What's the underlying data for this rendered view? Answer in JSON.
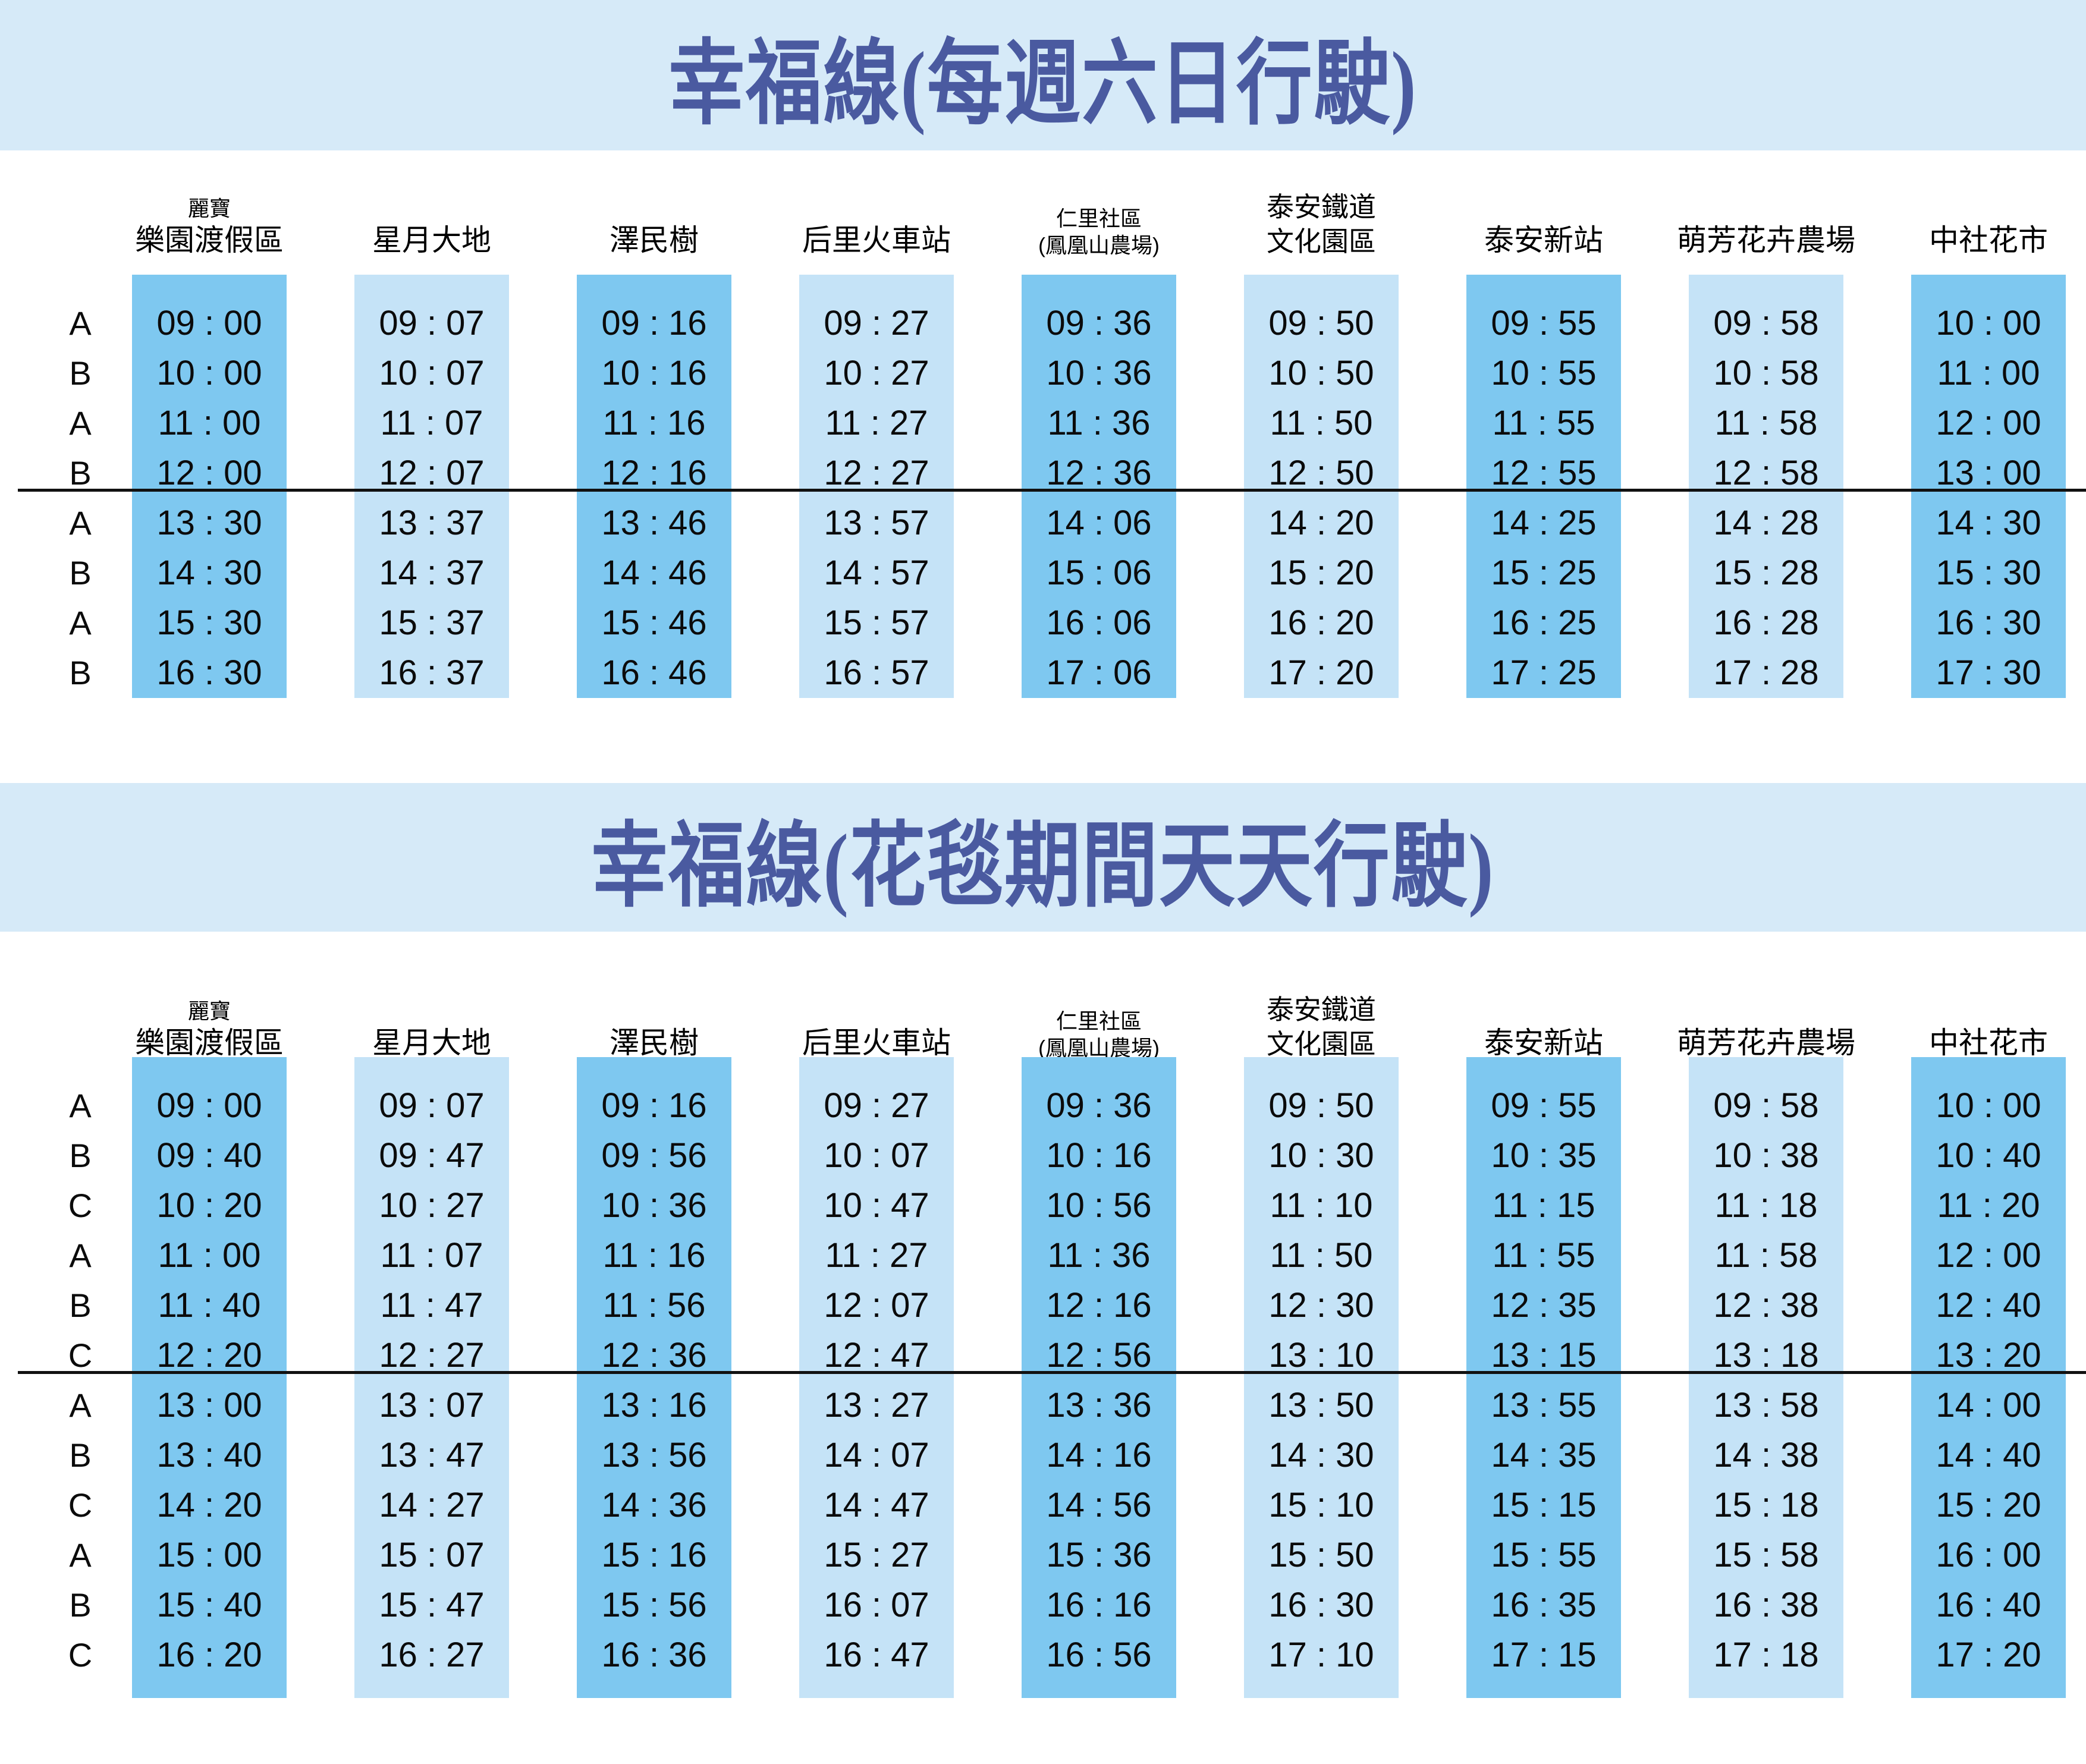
{
  "colors": {
    "band_background": "#d6eaf8",
    "title_text": "#4a5aa0",
    "column_dark": "#7ec8f0",
    "column_light": "#c5e3f7",
    "time_text": "#0b0b0b",
    "divider": "#111111"
  },
  "stations": [
    {
      "line1": "麗寶",
      "line2": "樂園渡假區",
      "style1": "small",
      "style2": "big",
      "shade": "dark"
    },
    {
      "line1": "",
      "line2": "星月大地",
      "style1": "small",
      "style2": "big",
      "shade": "light"
    },
    {
      "line1": "",
      "line2": "澤民樹",
      "style1": "small",
      "style2": "big",
      "shade": "dark"
    },
    {
      "line1": "",
      "line2": "后里火車站",
      "style1": "small",
      "style2": "big",
      "shade": "light"
    },
    {
      "line1": "仁里社區",
      "line2": "(鳳凰山農場)",
      "style1": "small",
      "style2": "small",
      "shade": "dark"
    },
    {
      "line1": "泰安鐵道",
      "line2": "文化園區",
      "style1": "med",
      "style2": "med",
      "shade": "light"
    },
    {
      "line1": "",
      "line2": "泰安新站",
      "style1": "small",
      "style2": "big",
      "shade": "dark"
    },
    {
      "line1": "",
      "line2": "萌芳花卉農場",
      "style1": "small",
      "style2": "big",
      "shade": "light"
    },
    {
      "line1": "",
      "line2": "中社花市",
      "style1": "small",
      "style2": "big",
      "shade": "dark"
    }
  ],
  "tables": [
    {
      "title": "幸福線(每週六日行駛)",
      "divider_after_row": 4,
      "rows": [
        {
          "letter": "A",
          "times": [
            "09 : 00",
            "09 : 07",
            "09 : 16",
            "09 : 27",
            "09 : 36",
            "09 : 50",
            "09 : 55",
            "09 : 58",
            "10 : 00"
          ]
        },
        {
          "letter": "B",
          "times": [
            "10 : 00",
            "10 : 07",
            "10 : 16",
            "10 : 27",
            "10 : 36",
            "10 : 50",
            "10 : 55",
            "10 : 58",
            "11 : 00"
          ]
        },
        {
          "letter": "A",
          "times": [
            "11 : 00",
            "11 : 07",
            "11 : 16",
            "11 : 27",
            "11 : 36",
            "11 : 50",
            "11 : 55",
            "11 : 58",
            "12 : 00"
          ]
        },
        {
          "letter": "B",
          "times": [
            "12 : 00",
            "12 : 07",
            "12 : 16",
            "12 : 27",
            "12 : 36",
            "12 : 50",
            "12 : 55",
            "12 : 58",
            "13 : 00"
          ]
        },
        {
          "letter": "A",
          "times": [
            "13 : 30",
            "13 : 37",
            "13 : 46",
            "13 : 57",
            "14 : 06",
            "14 : 20",
            "14 : 25",
            "14 : 28",
            "14 : 30"
          ]
        },
        {
          "letter": "B",
          "times": [
            "14 : 30",
            "14 : 37",
            "14 : 46",
            "14 : 57",
            "15 : 06",
            "15 : 20",
            "15 : 25",
            "15 : 28",
            "15 : 30"
          ]
        },
        {
          "letter": "A",
          "times": [
            "15 : 30",
            "15 : 37",
            "15 : 46",
            "15 : 57",
            "16 : 06",
            "16 : 20",
            "16 : 25",
            "16 : 28",
            "16 : 30"
          ]
        },
        {
          "letter": "B",
          "times": [
            "16 : 30",
            "16 : 37",
            "16 : 46",
            "16 : 57",
            "17 : 06",
            "17 : 20",
            "17 : 25",
            "17 : 28",
            "17 : 30"
          ]
        }
      ]
    },
    {
      "title": "幸福線(花毯期間天天行駛)",
      "divider_after_row": 6,
      "rows": [
        {
          "letter": "A",
          "times": [
            "09 : 00",
            "09 : 07",
            "09 : 16",
            "09 : 27",
            "09 : 36",
            "09 : 50",
            "09 : 55",
            "09 : 58",
            "10 : 00"
          ]
        },
        {
          "letter": "B",
          "times": [
            "09 : 40",
            "09 : 47",
            "09 : 56",
            "10 : 07",
            "10 : 16",
            "10 : 30",
            "10 : 35",
            "10 : 38",
            "10 : 40"
          ]
        },
        {
          "letter": "C",
          "times": [
            "10 : 20",
            "10 : 27",
            "10 : 36",
            "10 : 47",
            "10 : 56",
            "11 : 10",
            "11 : 15",
            "11 : 18",
            "11 : 20"
          ]
        },
        {
          "letter": "A",
          "times": [
            "11 : 00",
            "11 : 07",
            "11 : 16",
            "11 : 27",
            "11 : 36",
            "11 : 50",
            "11 : 55",
            "11 : 58",
            "12 : 00"
          ]
        },
        {
          "letter": "B",
          "times": [
            "11 : 40",
            "11 : 47",
            "11 : 56",
            "12 : 07",
            "12 : 16",
            "12 : 30",
            "12 : 35",
            "12 : 38",
            "12 : 40"
          ]
        },
        {
          "letter": "C",
          "times": [
            "12 : 20",
            "12 : 27",
            "12 : 36",
            "12 : 47",
            "12 : 56",
            "13 : 10",
            "13 : 15",
            "13 : 18",
            "13 : 20"
          ]
        },
        {
          "letter": "A",
          "times": [
            "13 : 00",
            "13 : 07",
            "13 : 16",
            "13 : 27",
            "13 : 36",
            "13 : 50",
            "13 : 55",
            "13 : 58",
            "14 : 00"
          ]
        },
        {
          "letter": "B",
          "times": [
            "13 : 40",
            "13 : 47",
            "13 : 56",
            "14 : 07",
            "14 : 16",
            "14 : 30",
            "14 : 35",
            "14 : 38",
            "14 : 40"
          ]
        },
        {
          "letter": "C",
          "times": [
            "14 : 20",
            "14 : 27",
            "14 : 36",
            "14 : 47",
            "14 : 56",
            "15 : 10",
            "15 : 15",
            "15 : 18",
            "15 : 20"
          ]
        },
        {
          "letter": "A",
          "times": [
            "15 : 00",
            "15 : 07",
            "15 : 16",
            "15 : 27",
            "15 : 36",
            "15 : 50",
            "15 : 55",
            "15 : 58",
            "16 : 00"
          ]
        },
        {
          "letter": "B",
          "times": [
            "15 : 40",
            "15 : 47",
            "15 : 56",
            "16 : 07",
            "16 : 16",
            "16 : 30",
            "16 : 35",
            "16 : 38",
            "16 : 40"
          ]
        },
        {
          "letter": "C",
          "times": [
            "16 : 20",
            "16 : 27",
            "16 : 36",
            "16 : 47",
            "16 : 56",
            "17 : 10",
            "17 : 15",
            "17 : 18",
            "17 : 20"
          ]
        }
      ]
    }
  ]
}
